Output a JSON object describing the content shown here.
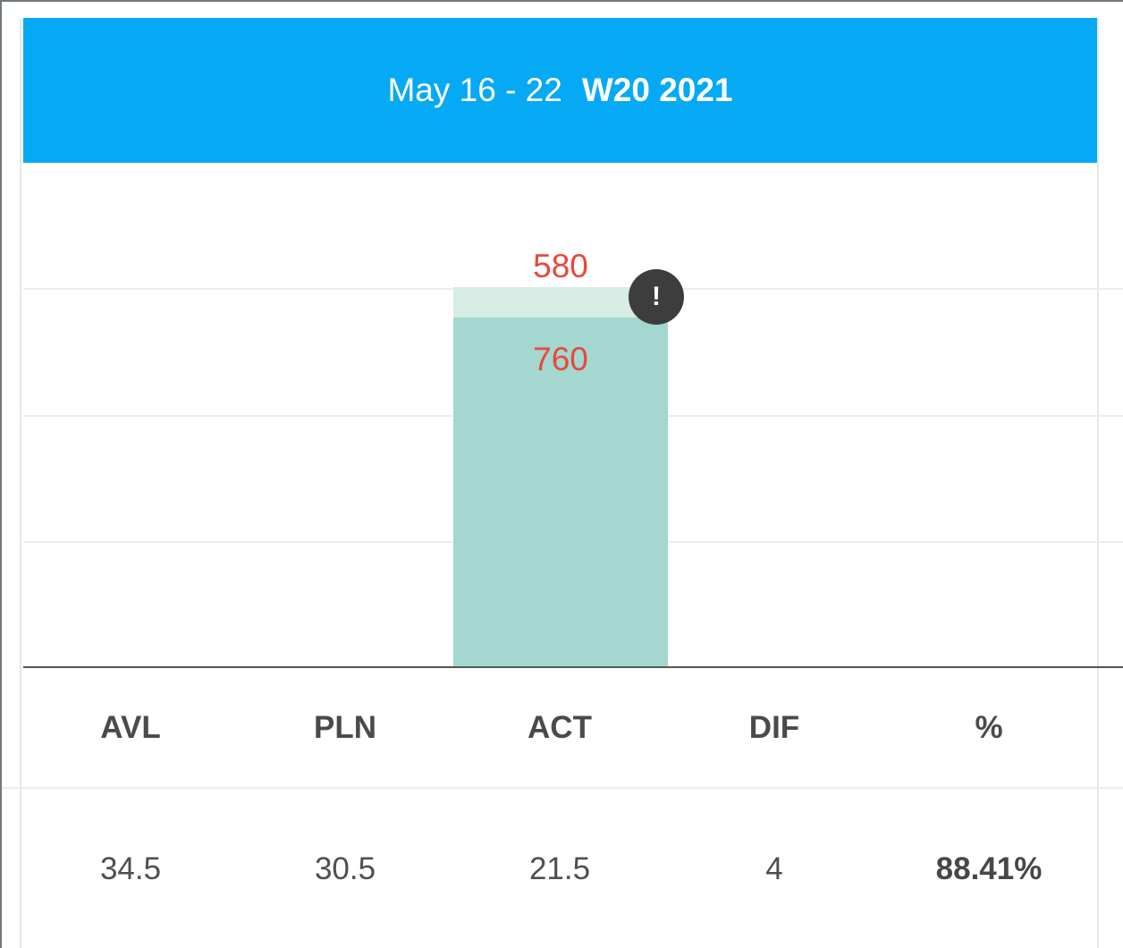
{
  "header": {
    "date_range": "May 16 - 22",
    "week": "W20 2021",
    "background_color": "#06a9f4"
  },
  "chart_data": {
    "type": "bar",
    "categories": [
      "ACT"
    ],
    "series": [
      {
        "name": "",
        "values": [
          760
        ],
        "color": "#a3d7cf"
      },
      {
        "name": "",
        "values": [
          580
        ],
        "color": "#d6ece4"
      }
    ],
    "data_labels": [
      "580",
      "760"
    ],
    "label_color": "#e8493b",
    "grid": true,
    "alert_icon": "exclamation-icon"
  },
  "summary": {
    "headers": [
      "AVL",
      "PLN",
      "ACT",
      "DIF",
      "%"
    ],
    "values": [
      "34.5",
      "30.5",
      "21.5",
      "4",
      "88.41%"
    ]
  }
}
